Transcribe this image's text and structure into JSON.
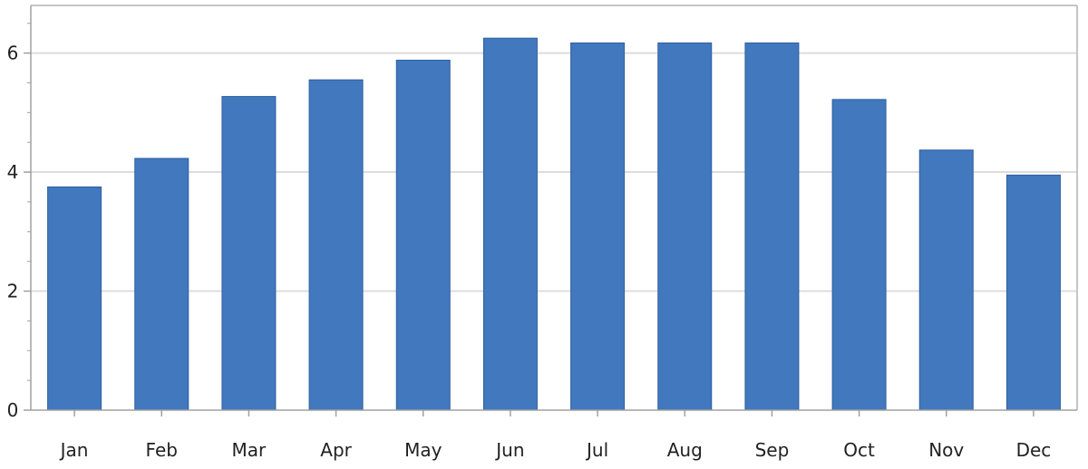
{
  "chart_data": {
    "type": "bar",
    "title": "",
    "xlabel": "",
    "ylabel": "",
    "categories": [
      "Jan",
      "Feb",
      "Mar",
      "Apr",
      "May",
      "Jun",
      "Jul",
      "Aug",
      "Sep",
      "Oct",
      "Nov",
      "Dec"
    ],
    "values": [
      3.75,
      4.23,
      5.27,
      5.55,
      5.88,
      6.25,
      6.17,
      6.17,
      6.17,
      5.22,
      4.37,
      3.95
    ],
    "ylim": [
      0,
      6.8
    ],
    "yticks": [
      0,
      2,
      4,
      6
    ],
    "ytick_labels": [
      "0",
      "2",
      "4",
      "6"
    ],
    "grid": true,
    "legend": "none",
    "colors": {
      "bar": "#4178be",
      "bar_edge": "#2f5f9e",
      "grid": "#dcdcdc",
      "axis": "#a0a0a0",
      "frame": "#b4b4b4"
    }
  }
}
